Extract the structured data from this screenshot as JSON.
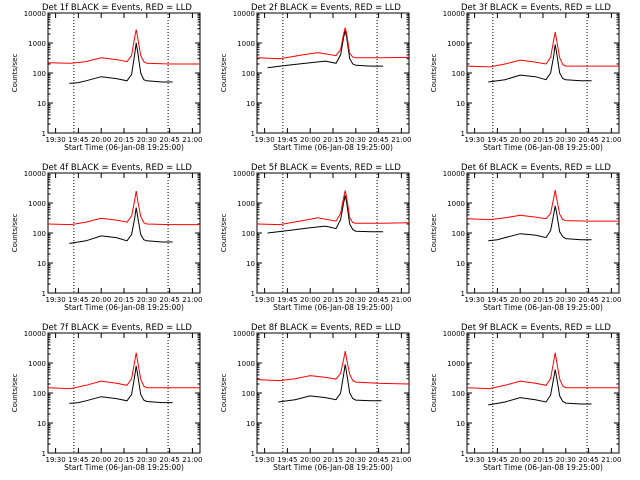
{
  "colors": {
    "events": "#000000",
    "lld": "#ff0000",
    "axis": "#000000",
    "background": "#ffffff"
  },
  "chart_data": [
    {
      "type": "line",
      "title": "Det 1f BLACK = Events, RED = LLD",
      "xlabel": "Start Time (06-Jan-08 19:25:00)",
      "ylabel": "Counts/sec",
      "x_ticks": [
        "19:30",
        "19:45",
        "20:00",
        "20:15",
        "20:30",
        "20:45",
        "21:00"
      ],
      "y_ticks": [
        "1",
        "10",
        "100",
        "1000",
        "10000"
      ],
      "ylim": [
        1,
        10000
      ],
      "yscale": "log",
      "xlim": [
        "19:25",
        "21:05"
      ],
      "vertical_markers": [
        "19:42",
        "20:44"
      ],
      "series": [
        {
          "name": "Events",
          "color": "#000000",
          "x": [
            "19:39",
            "19:45",
            "19:50",
            "20:00",
            "20:10",
            "20:17",
            "20:20",
            "20:22",
            "20:23",
            "20:24",
            "20:26",
            "20:28",
            "20:30",
            "20:40",
            "20:47"
          ],
          "y": [
            45,
            48,
            55,
            75,
            65,
            55,
            90,
            400,
            1000,
            500,
            100,
            60,
            55,
            50,
            50
          ]
        },
        {
          "name": "LLD",
          "color": "#ff0000",
          "x": [
            "19:25",
            "19:40",
            "19:50",
            "20:00",
            "20:10",
            "20:17",
            "20:20",
            "20:22",
            "20:23",
            "20:24",
            "20:26",
            "20:28",
            "20:30",
            "20:45",
            "21:05"
          ],
          "y": [
            220,
            210,
            240,
            320,
            280,
            240,
            380,
            1500,
            2800,
            1500,
            380,
            240,
            210,
            200,
            200
          ]
        }
      ]
    },
    {
      "type": "line",
      "title": "Det 2f BLACK = Events, RED = LLD",
      "xlabel": "Start Time (06-Jan-08 19:25:00)",
      "ylabel": "Counts/sec",
      "x_ticks": [
        "19:30",
        "19:45",
        "20:00",
        "20:15",
        "20:30",
        "20:45",
        "21:00"
      ],
      "y_ticks": [
        "1",
        "10",
        "100",
        "1000",
        "10000"
      ],
      "ylim": [
        1,
        10000
      ],
      "yscale": "log",
      "xlim": [
        "19:25",
        "21:05"
      ],
      "vertical_markers": [
        "19:42",
        "20:44"
      ],
      "series": [
        {
          "name": "Events",
          "color": "#000000",
          "x": [
            "19:32",
            "19:45",
            "20:00",
            "20:10",
            "20:17",
            "20:20",
            "20:22",
            "20:23",
            "20:24",
            "20:26",
            "20:28",
            "20:30",
            "20:40",
            "20:48"
          ],
          "y": [
            150,
            180,
            220,
            250,
            210,
            400,
            1500,
            2600,
            1500,
            300,
            200,
            180,
            170,
            170
          ]
        },
        {
          "name": "LLD",
          "color": "#ff0000",
          "x": [
            "19:25",
            "19:40",
            "19:55",
            "20:05",
            "20:17",
            "20:20",
            "20:22",
            "20:23",
            "20:24",
            "20:26",
            "20:28",
            "20:30",
            "20:45",
            "21:05"
          ],
          "y": [
            320,
            300,
            400,
            480,
            380,
            600,
            2000,
            3200,
            2000,
            450,
            340,
            320,
            320,
            330
          ]
        }
      ]
    },
    {
      "type": "line",
      "title": "Det 3f BLACK = Events, RED = LLD",
      "xlabel": "Start Time (06-Jan-08 19:25:00)",
      "ylabel": "Counts/sec",
      "x_ticks": [
        "19:30",
        "19:45",
        "20:00",
        "20:15",
        "20:30",
        "20:45",
        "21:00"
      ],
      "y_ticks": [
        "1",
        "10",
        "100",
        "1000",
        "10000"
      ],
      "ylim": [
        1,
        10000
      ],
      "yscale": "log",
      "xlim": [
        "19:25",
        "21:05"
      ],
      "vertical_markers": [
        "19:42",
        "20:44"
      ],
      "series": [
        {
          "name": "Events",
          "color": "#000000",
          "x": [
            "19:39",
            "19:45",
            "19:50",
            "20:00",
            "20:10",
            "20:17",
            "20:20",
            "20:22",
            "20:23",
            "20:24",
            "20:26",
            "20:28",
            "20:30",
            "20:40",
            "20:47"
          ],
          "y": [
            50,
            55,
            60,
            85,
            75,
            60,
            100,
            350,
            900,
            450,
            100,
            65,
            60,
            55,
            55
          ]
        },
        {
          "name": "LLD",
          "color": "#ff0000",
          "x": [
            "19:25",
            "19:40",
            "19:50",
            "20:00",
            "20:10",
            "20:17",
            "20:20",
            "20:22",
            "20:23",
            "20:24",
            "20:26",
            "20:28",
            "20:30",
            "20:45",
            "21:05"
          ],
          "y": [
            170,
            160,
            200,
            270,
            230,
            200,
            330,
            1200,
            2300,
            1200,
            320,
            190,
            170,
            170,
            170
          ]
        }
      ]
    },
    {
      "type": "line",
      "title": "Det 4f BLACK = Events, RED = LLD",
      "xlabel": "Start Time (06-Jan-08 19:25:00)",
      "ylabel": "Counts/sec",
      "x_ticks": [
        "19:30",
        "19:45",
        "20:00",
        "20:15",
        "20:30",
        "20:45",
        "21:00"
      ],
      "y_ticks": [
        "1",
        "10",
        "100",
        "1000",
        "10000"
      ],
      "ylim": [
        1,
        10000
      ],
      "yscale": "log",
      "xlim": [
        "19:25",
        "21:05"
      ],
      "vertical_markers": [
        "19:42",
        "20:44"
      ],
      "series": [
        {
          "name": "Events",
          "color": "#000000",
          "x": [
            "19:39",
            "19:45",
            "19:50",
            "20:00",
            "20:10",
            "20:17",
            "20:20",
            "20:22",
            "20:23",
            "20:24",
            "20:26",
            "20:28",
            "20:30",
            "20:40",
            "20:47"
          ],
          "y": [
            45,
            50,
            55,
            80,
            70,
            55,
            90,
            300,
            700,
            350,
            90,
            60,
            55,
            50,
            50
          ]
        },
        {
          "name": "LLD",
          "color": "#ff0000",
          "x": [
            "19:25",
            "19:40",
            "19:50",
            "20:00",
            "20:10",
            "20:17",
            "20:20",
            "20:22",
            "20:23",
            "20:24",
            "20:26",
            "20:28",
            "20:30",
            "20:45",
            "21:05"
          ],
          "y": [
            200,
            190,
            230,
            310,
            270,
            230,
            370,
            1200,
            2500,
            1200,
            360,
            220,
            200,
            190,
            190
          ]
        }
      ]
    },
    {
      "type": "line",
      "title": "Det 5f BLACK = Events, RED = LLD",
      "xlabel": "Start Time (06-Jan-08 19:25:00)",
      "ylabel": "Counts/sec",
      "x_ticks": [
        "19:30",
        "19:45",
        "20:00",
        "20:15",
        "20:30",
        "20:45",
        "21:00"
      ],
      "y_ticks": [
        "1",
        "10",
        "100",
        "1000",
        "10000"
      ],
      "ylim": [
        1,
        10000
      ],
      "yscale": "log",
      "xlim": [
        "19:25",
        "21:05"
      ],
      "vertical_markers": [
        "19:42",
        "20:44"
      ],
      "series": [
        {
          "name": "Events",
          "color": "#000000",
          "x": [
            "19:32",
            "19:45",
            "20:00",
            "20:10",
            "20:17",
            "20:20",
            "20:22",
            "20:23",
            "20:24",
            "20:26",
            "20:28",
            "20:30",
            "20:40",
            "20:48"
          ],
          "y": [
            100,
            120,
            150,
            170,
            140,
            280,
            1000,
            1800,
            1000,
            200,
            130,
            115,
            110,
            110
          ]
        },
        {
          "name": "LLD",
          "color": "#ff0000",
          "x": [
            "19:25",
            "19:40",
            "19:55",
            "20:05",
            "20:17",
            "20:20",
            "20:22",
            "20:23",
            "20:24",
            "20:26",
            "20:28",
            "20:30",
            "20:45",
            "21:05"
          ],
          "y": [
            200,
            190,
            260,
            320,
            250,
            450,
            1500,
            2600,
            1500,
            320,
            220,
            210,
            210,
            220
          ]
        }
      ]
    },
    {
      "type": "line",
      "title": "Det 6f BLACK = Events, RED = LLD",
      "xlabel": "Start Time (06-Jan-08 19:25:00)",
      "ylabel": "Counts/sec",
      "x_ticks": [
        "19:30",
        "19:45",
        "20:00",
        "20:15",
        "20:30",
        "20:45",
        "21:00"
      ],
      "y_ticks": [
        "1",
        "10",
        "100",
        "1000",
        "10000"
      ],
      "ylim": [
        1,
        10000
      ],
      "yscale": "log",
      "xlim": [
        "19:25",
        "21:05"
      ],
      "vertical_markers": [
        "19:42",
        "20:44"
      ],
      "series": [
        {
          "name": "Events",
          "color": "#000000",
          "x": [
            "19:39",
            "19:45",
            "19:50",
            "20:00",
            "20:10",
            "20:17",
            "20:20",
            "20:22",
            "20:23",
            "20:24",
            "20:26",
            "20:28",
            "20:30",
            "20:40",
            "20:47"
          ],
          "y": [
            55,
            60,
            70,
            95,
            85,
            70,
            120,
            400,
            800,
            450,
            110,
            75,
            65,
            60,
            60
          ]
        },
        {
          "name": "LLD",
          "color": "#ff0000",
          "x": [
            "19:25",
            "19:40",
            "19:50",
            "20:00",
            "20:10",
            "20:17",
            "20:20",
            "20:22",
            "20:23",
            "20:24",
            "20:26",
            "20:28",
            "20:30",
            "20:45",
            "21:05"
          ],
          "y": [
            300,
            280,
            320,
            390,
            340,
            300,
            450,
            1400,
            2700,
            1400,
            420,
            280,
            260,
            250,
            250
          ]
        }
      ]
    },
    {
      "type": "line",
      "title": "Det 7f BLACK = Events, RED = LLD",
      "xlabel": "Start Time (06-Jan-08 19:25:00)",
      "ylabel": "Counts/sec",
      "x_ticks": [
        "19:30",
        "19:45",
        "20:00",
        "20:15",
        "20:30",
        "20:45",
        "21:00"
      ],
      "y_ticks": [
        "1",
        "10",
        "100",
        "1000",
        "10000"
      ],
      "ylim": [
        1,
        10000
      ],
      "yscale": "log",
      "xlim": [
        "19:25",
        "21:05"
      ],
      "vertical_markers": [
        "19:42",
        "20:44"
      ],
      "series": [
        {
          "name": "Events",
          "color": "#000000",
          "x": [
            "19:39",
            "19:45",
            "19:50",
            "20:00",
            "20:10",
            "20:17",
            "20:20",
            "20:22",
            "20:23",
            "20:24",
            "20:26",
            "20:28",
            "20:30",
            "20:40",
            "20:47"
          ],
          "y": [
            45,
            48,
            55,
            75,
            65,
            55,
            90,
            350,
            800,
            400,
            90,
            58,
            52,
            48,
            48
          ]
        },
        {
          "name": "LLD",
          "color": "#ff0000",
          "x": [
            "19:25",
            "19:40",
            "19:50",
            "20:00",
            "20:10",
            "20:17",
            "20:20",
            "20:22",
            "20:23",
            "20:24",
            "20:26",
            "20:28",
            "20:30",
            "20:45",
            "21:05"
          ],
          "y": [
            150,
            140,
            180,
            250,
            210,
            180,
            300,
            1100,
            2200,
            1100,
            290,
            170,
            150,
            150,
            150
          ]
        }
      ]
    },
    {
      "type": "line",
      "title": "Det 8f BLACK = Events, RED = LLD",
      "xlabel": "Start Time (06-Jan-08 19:25:00)",
      "ylabel": "Counts/sec",
      "x_ticks": [
        "19:30",
        "19:45",
        "20:00",
        "20:15",
        "20:30",
        "20:45",
        "21:00"
      ],
      "y_ticks": [
        "1",
        "10",
        "100",
        "1000",
        "10000"
      ],
      "ylim": [
        1,
        10000
      ],
      "yscale": "log",
      "xlim": [
        "19:25",
        "21:05"
      ],
      "vertical_markers": [
        "19:42",
        "20:44"
      ],
      "series": [
        {
          "name": "Events",
          "color": "#000000",
          "x": [
            "19:39",
            "19:45",
            "19:50",
            "20:00",
            "20:10",
            "20:17",
            "20:20",
            "20:22",
            "20:23",
            "20:24",
            "20:26",
            "20:28",
            "20:30",
            "20:40",
            "20:47"
          ],
          "y": [
            50,
            55,
            60,
            80,
            70,
            60,
            100,
            400,
            900,
            450,
            100,
            65,
            58,
            55,
            55
          ]
        },
        {
          "name": "LLD",
          "color": "#ff0000",
          "x": [
            "19:25",
            "19:40",
            "19:50",
            "20:00",
            "20:10",
            "20:17",
            "20:20",
            "20:22",
            "20:23",
            "20:24",
            "20:26",
            "20:28",
            "20:30",
            "20:45",
            "21:05"
          ],
          "y": [
            280,
            260,
            300,
            380,
            330,
            290,
            450,
            1300,
            2500,
            1300,
            420,
            260,
            230,
            210,
            200
          ]
        }
      ]
    },
    {
      "type": "line",
      "title": "Det 9f BLACK = Events, RED = LLD",
      "xlabel": "Start Time (06-Jan-08 19:25:00)",
      "ylabel": "Counts/sec",
      "x_ticks": [
        "19:30",
        "19:45",
        "20:00",
        "20:15",
        "20:30",
        "20:45",
        "21:00"
      ],
      "y_ticks": [
        "1",
        "10",
        "100",
        "1000",
        "10000"
      ],
      "ylim": [
        1,
        10000
      ],
      "yscale": "log",
      "xlim": [
        "19:25",
        "21:05"
      ],
      "vertical_markers": [
        "19:42",
        "20:44"
      ],
      "series": [
        {
          "name": "Events",
          "color": "#000000",
          "x": [
            "19:39",
            "19:45",
            "19:50",
            "20:00",
            "20:10",
            "20:17",
            "20:20",
            "20:22",
            "20:23",
            "20:24",
            "20:26",
            "20:28",
            "20:30",
            "20:40",
            "20:47"
          ],
          "y": [
            40,
            45,
            50,
            70,
            60,
            50,
            85,
            300,
            600,
            320,
            80,
            52,
            46,
            43,
            43
          ]
        },
        {
          "name": "LLD",
          "color": "#ff0000",
          "x": [
            "19:25",
            "19:40",
            "19:50",
            "20:00",
            "20:10",
            "20:17",
            "20:20",
            "20:22",
            "20:23",
            "20:24",
            "20:26",
            "20:28",
            "20:30",
            "20:45",
            "21:05"
          ],
          "y": [
            150,
            140,
            180,
            250,
            210,
            180,
            300,
            1100,
            2200,
            1100,
            290,
            170,
            150,
            150,
            150
          ]
        }
      ]
    }
  ]
}
